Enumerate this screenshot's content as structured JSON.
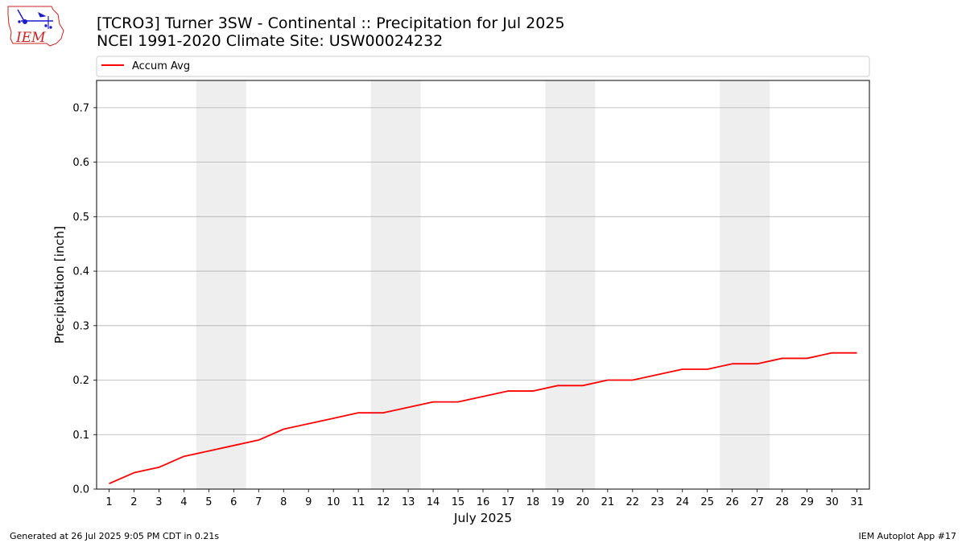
{
  "logo": {
    "text": "IEM"
  },
  "header": {
    "title_line1": "[TCRO3] Turner 3SW - Continental :: Precipitation for Jul 2025",
    "title_line2": "NCEI 1991-2020 Climate Site: USW00024232"
  },
  "footer": {
    "left": "Generated at 26 Jul 2025 9:05 PM CDT in 0.21s",
    "right": "IEM Autoplot App #17"
  },
  "colors": {
    "series": "#ff0000",
    "weekend_shade": "#eeeeee",
    "grid": "#b0b0b0",
    "logo_red": "#cc2222",
    "logo_blue": "#1a1acc"
  },
  "chart_data": {
    "type": "line",
    "title": "[TCRO3] Turner 3SW - Continental :: Precipitation for Jul 2025",
    "subtitle": "NCEI 1991-2020 Climate Site: USW00024232",
    "xlabel": "July 2025",
    "ylabel": "Precipitation [inch]",
    "xlim": [
      0.5,
      31.5
    ],
    "ylim": [
      0,
      0.75
    ],
    "x_ticks": [
      1,
      2,
      3,
      4,
      5,
      6,
      7,
      8,
      9,
      10,
      11,
      12,
      13,
      14,
      15,
      16,
      17,
      18,
      19,
      20,
      21,
      22,
      23,
      24,
      25,
      26,
      27,
      28,
      29,
      30,
      31
    ],
    "y_ticks": [
      0.0,
      0.1,
      0.2,
      0.3,
      0.4,
      0.5,
      0.6,
      0.7
    ],
    "y_tick_labels": [
      "0.0",
      "0.1",
      "0.2",
      "0.3",
      "0.4",
      "0.5",
      "0.6",
      "0.7"
    ],
    "grid": "horizontal",
    "legend_position": "top",
    "weekend_shading": [
      [
        5,
        6
      ],
      [
        12,
        13
      ],
      [
        19,
        20
      ],
      [
        26,
        27
      ]
    ],
    "series": [
      {
        "name": "Accum Avg",
        "color": "#ff0000",
        "x": [
          1,
          2,
          3,
          4,
          5,
          6,
          7,
          8,
          9,
          10,
          11,
          12,
          13,
          14,
          15,
          16,
          17,
          18,
          19,
          20,
          21,
          22,
          23,
          24,
          25,
          26,
          27,
          28,
          29,
          30,
          31
        ],
        "values": [
          0.01,
          0.03,
          0.04,
          0.06,
          0.07,
          0.08,
          0.09,
          0.11,
          0.12,
          0.13,
          0.14,
          0.14,
          0.15,
          0.16,
          0.16,
          0.17,
          0.18,
          0.18,
          0.19,
          0.19,
          0.2,
          0.2,
          0.21,
          0.22,
          0.22,
          0.23,
          0.23,
          0.24,
          0.24,
          0.25,
          0.25
        ]
      }
    ]
  }
}
